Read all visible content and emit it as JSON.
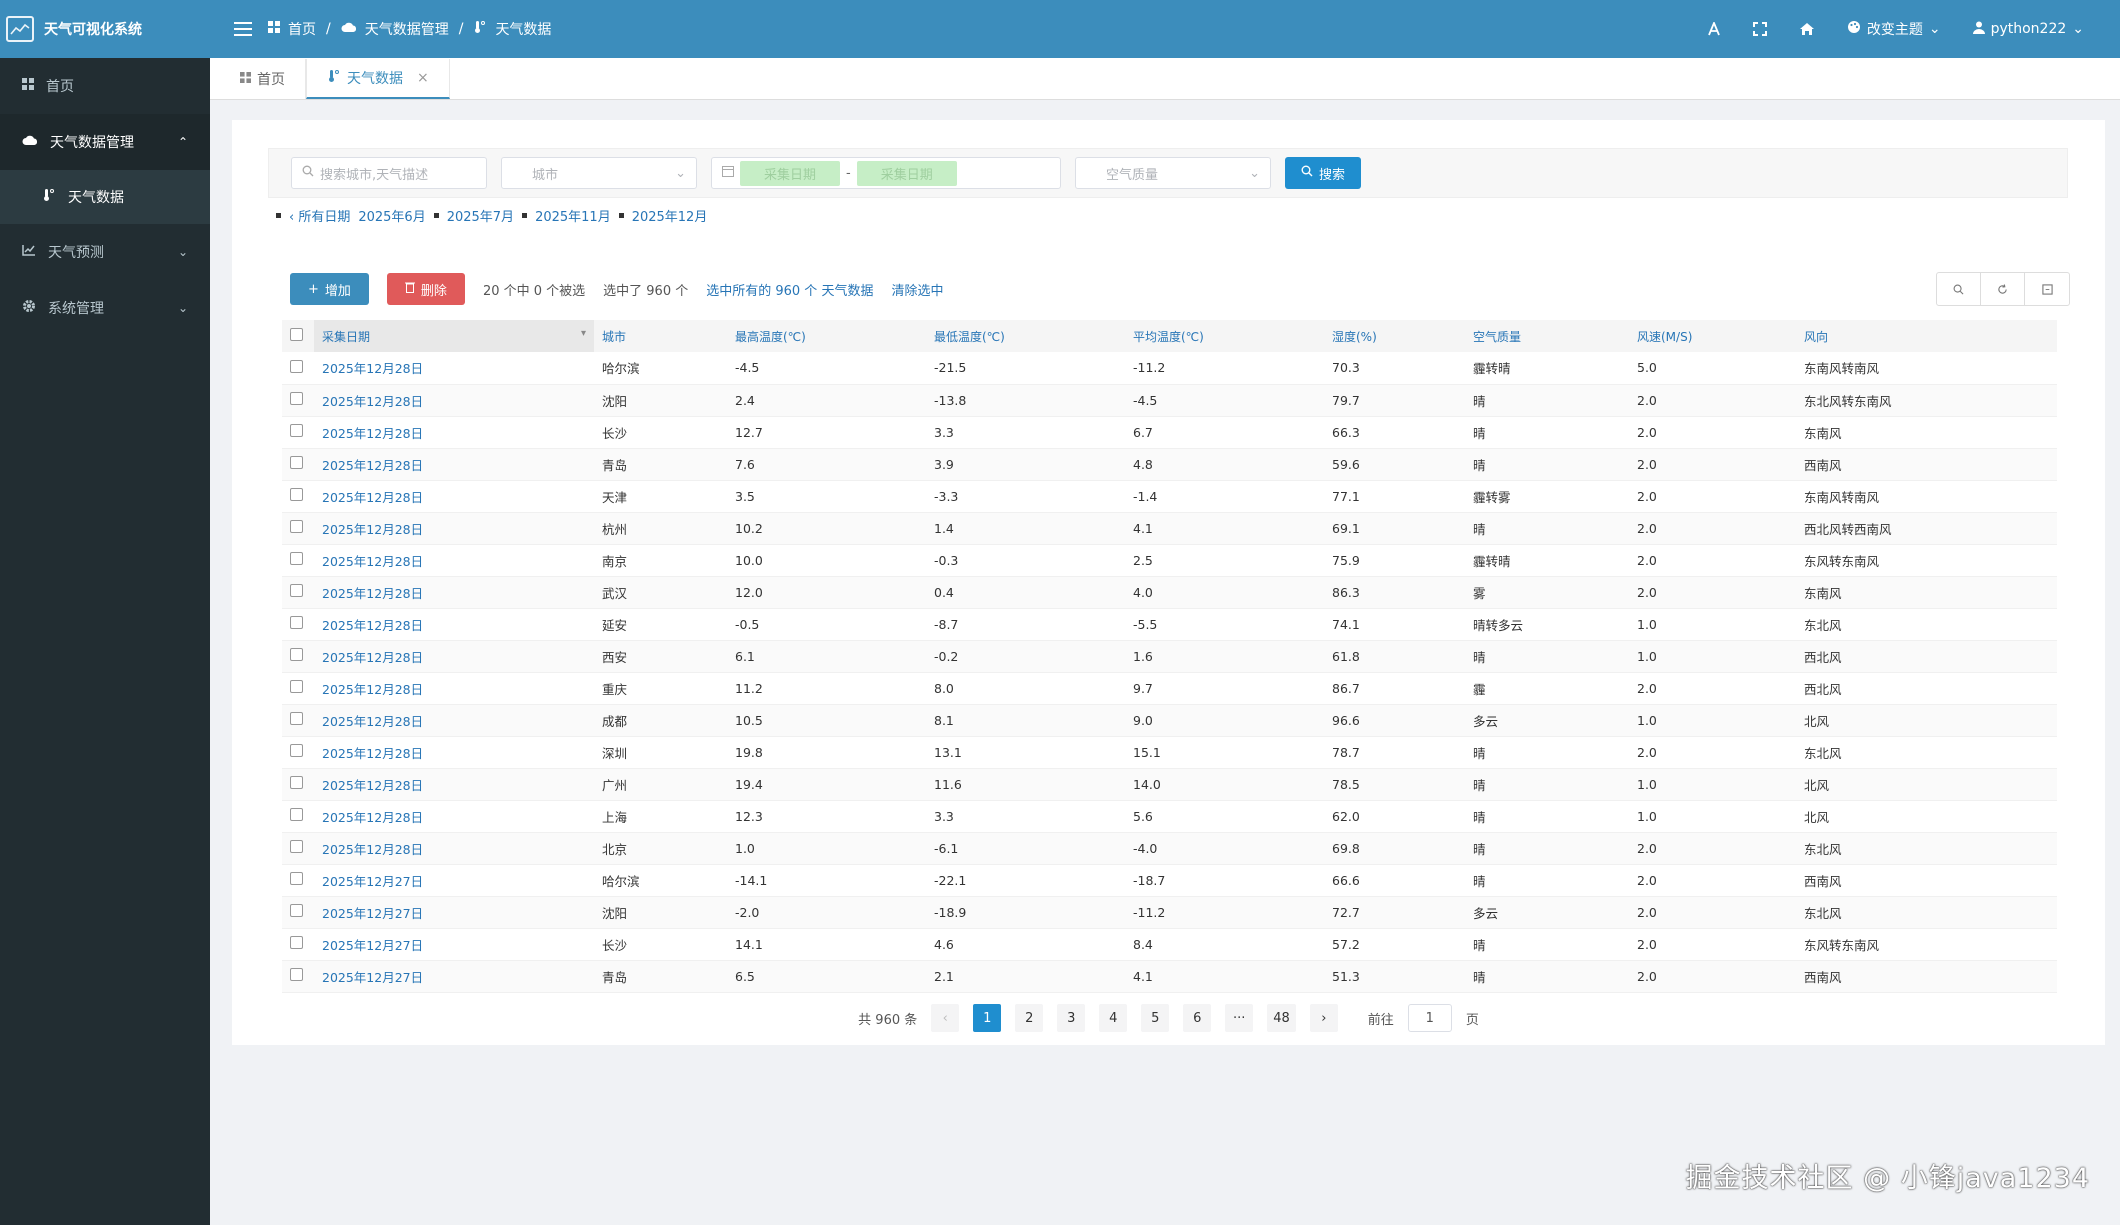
{
  "app": {
    "title": "天气可视化系统"
  },
  "breadcrumb": {
    "home": "首页",
    "sep": "/",
    "group": "天气数据管理",
    "current": "天气数据"
  },
  "topbar": {
    "theme_label": "改变主题",
    "user": "python222"
  },
  "sidebar": {
    "home": "首页",
    "weather_mgmt": "天气数据管理",
    "weather_data": "天气数据",
    "forecast": "天气预测",
    "system": "系统管理"
  },
  "tabs": {
    "home": "首页",
    "current": "天气数据"
  },
  "filter": {
    "search_placeholder": "搜索城市,天气描述",
    "city_placeholder": "城市",
    "date_from": "采集日期",
    "date_sep": "-",
    "date_to": "采集日期",
    "air_placeholder": "空气质量",
    "search_label": "搜索"
  },
  "date_links": [
    "‹ 所有日期",
    "2025年6月",
    "2025年7月",
    "2025年11月",
    "2025年12月"
  ],
  "toolbar": {
    "add_label": "增加",
    "delete_label": "删除",
    "selection_text": "20 个中 0 个被选",
    "selected_text": "选中了 960 个",
    "select_all_text": "选中所有的 960 个 天气数据",
    "clear_text": "清除选中"
  },
  "table": {
    "columns": [
      "采集日期",
      "城市",
      "最高温度(℃)",
      "最低温度(℃)",
      "平均温度(℃)",
      "湿度(%)",
      "空气质量",
      "风速(M/S)",
      "风向"
    ],
    "rows": [
      [
        "2025年12月28日",
        "哈尔滨",
        "-4.5",
        "-21.5",
        "-11.2",
        "70.3",
        "霾转晴",
        "5.0",
        "东南风转南风"
      ],
      [
        "2025年12月28日",
        "沈阳",
        "2.4",
        "-13.8",
        "-4.5",
        "79.7",
        "晴",
        "2.0",
        "东北风转东南风"
      ],
      [
        "2025年12月28日",
        "长沙",
        "12.7",
        "3.3",
        "6.7",
        "66.3",
        "晴",
        "2.0",
        "东南风"
      ],
      [
        "2025年12月28日",
        "青岛",
        "7.6",
        "3.9",
        "4.8",
        "59.6",
        "晴",
        "2.0",
        "西南风"
      ],
      [
        "2025年12月28日",
        "天津",
        "3.5",
        "-3.3",
        "-1.4",
        "77.1",
        "霾转雾",
        "2.0",
        "东南风转南风"
      ],
      [
        "2025年12月28日",
        "杭州",
        "10.2",
        "1.4",
        "4.1",
        "69.1",
        "晴",
        "2.0",
        "西北风转西南风"
      ],
      [
        "2025年12月28日",
        "南京",
        "10.0",
        "-0.3",
        "2.5",
        "75.9",
        "霾转晴",
        "2.0",
        "东风转东南风"
      ],
      [
        "2025年12月28日",
        "武汉",
        "12.0",
        "0.4",
        "4.0",
        "86.3",
        "雾",
        "2.0",
        "东南风"
      ],
      [
        "2025年12月28日",
        "延安",
        "-0.5",
        "-8.7",
        "-5.5",
        "74.1",
        "晴转多云",
        "1.0",
        "东北风"
      ],
      [
        "2025年12月28日",
        "西安",
        "6.1",
        "-0.2",
        "1.6",
        "61.8",
        "晴",
        "1.0",
        "西北风"
      ],
      [
        "2025年12月28日",
        "重庆",
        "11.2",
        "8.0",
        "9.7",
        "86.7",
        "霾",
        "2.0",
        "西北风"
      ],
      [
        "2025年12月28日",
        "成都",
        "10.5",
        "8.1",
        "9.0",
        "96.6",
        "多云",
        "1.0",
        "北风"
      ],
      [
        "2025年12月28日",
        "深圳",
        "19.8",
        "13.1",
        "15.1",
        "78.7",
        "晴",
        "2.0",
        "东北风"
      ],
      [
        "2025年12月28日",
        "广州",
        "19.4",
        "11.6",
        "14.0",
        "78.5",
        "晴",
        "1.0",
        "北风"
      ],
      [
        "2025年12月28日",
        "上海",
        "12.3",
        "3.3",
        "5.6",
        "62.0",
        "晴",
        "1.0",
        "北风"
      ],
      [
        "2025年12月28日",
        "北京",
        "1.0",
        "-6.1",
        "-4.0",
        "69.8",
        "晴",
        "2.0",
        "东北风"
      ],
      [
        "2025年12月27日",
        "哈尔滨",
        "-14.1",
        "-22.1",
        "-18.7",
        "66.6",
        "晴",
        "2.0",
        "西南风"
      ],
      [
        "2025年12月27日",
        "沈阳",
        "-2.0",
        "-18.9",
        "-11.2",
        "72.7",
        "多云",
        "2.0",
        "东北风"
      ],
      [
        "2025年12月27日",
        "长沙",
        "14.1",
        "4.6",
        "8.4",
        "57.2",
        "晴",
        "2.0",
        "东风转东南风"
      ],
      [
        "2025年12月27日",
        "青岛",
        "6.5",
        "2.1",
        "4.1",
        "51.3",
        "晴",
        "2.0",
        "西南风"
      ]
    ]
  },
  "pager": {
    "total": "共 960 条",
    "pages": [
      "1",
      "2",
      "3",
      "4",
      "5",
      "6",
      "···",
      "48"
    ],
    "goto_prefix": "前往",
    "goto_value": "1",
    "goto_suffix": "页"
  },
  "watermark": "掘金技术社区 @ 小锋java1234",
  "colors": {
    "header": "#3c8dbc",
    "sidebar": "#222d32",
    "link": "#2775b6",
    "danger": "#e05a5a"
  }
}
